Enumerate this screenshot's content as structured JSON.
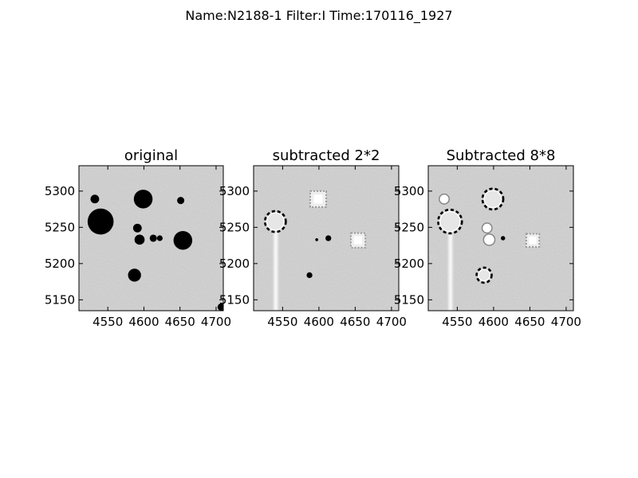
{
  "figure": {
    "suptitle": "Name:N2188-1 Filter:I Time:170116_1927"
  },
  "colors": {
    "background": "#d4d4d4",
    "star_dark": "#000000",
    "residual_light": "#ffffff",
    "axis": "#000000"
  },
  "chart_data": [
    {
      "type": "heatmap",
      "title": "original",
      "xlim": [
        4510,
        4710
      ],
      "ylim": [
        5135,
        5335
      ],
      "xticks": [
        4550,
        4600,
        4650,
        4700
      ],
      "yticks": [
        5150,
        5200,
        5250,
        5300
      ],
      "grid": false,
      "sources": [
        {
          "x": 4532,
          "y": 5289,
          "r": 6,
          "kind": "dark"
        },
        {
          "x": 4599,
          "y": 5289,
          "r": 13,
          "kind": "dark"
        },
        {
          "x": 4651,
          "y": 5287,
          "r": 5,
          "kind": "dark"
        },
        {
          "x": 4540,
          "y": 5258,
          "r": 18,
          "kind": "dark"
        },
        {
          "x": 4591,
          "y": 5249,
          "r": 6,
          "kind": "dark"
        },
        {
          "x": 4594,
          "y": 5233,
          "r": 7,
          "kind": "dark"
        },
        {
          "x": 4613,
          "y": 5235,
          "r": 5,
          "kind": "dark"
        },
        {
          "x": 4622,
          "y": 5235,
          "r": 4,
          "kind": "dark"
        },
        {
          "x": 4654,
          "y": 5232,
          "r": 13,
          "kind": "dark"
        },
        {
          "x": 4587,
          "y": 5184,
          "r": 9,
          "kind": "dark"
        },
        {
          "x": 4707,
          "y": 5140,
          "r": 5,
          "kind": "dark"
        }
      ]
    },
    {
      "type": "heatmap",
      "title": "subtracted 2*2",
      "xlim": [
        4510,
        4710
      ],
      "ylim": [
        5135,
        5335
      ],
      "xticks": [
        4550,
        4600,
        4650,
        4700
      ],
      "yticks": [
        5150,
        5200,
        5250,
        5300
      ],
      "grid": false,
      "sources": [
        {
          "x": 4540,
          "y": 5258,
          "r": 12,
          "kind": "ring"
        },
        {
          "x": 4599,
          "y": 5289,
          "r": 11,
          "kind": "square"
        },
        {
          "x": 4654,
          "y": 5232,
          "r": 10,
          "kind": "square"
        },
        {
          "x": 4613,
          "y": 5235,
          "r": 4,
          "kind": "dark"
        },
        {
          "x": 4597,
          "y": 5233,
          "r": 2,
          "kind": "dark"
        },
        {
          "x": 4587,
          "y": 5184,
          "r": 4,
          "kind": "dark"
        }
      ],
      "streak": {
        "x": 4540,
        "y_top": 5245,
        "y_bottom": 5135
      }
    },
    {
      "type": "heatmap",
      "title": "Subtracted 8*8",
      "xlim": [
        4510,
        4710
      ],
      "ylim": [
        5135,
        5335
      ],
      "xticks": [
        4550,
        4600,
        4650,
        4700
      ],
      "yticks": [
        5150,
        5200,
        5250,
        5300
      ],
      "grid": false,
      "sources": [
        {
          "x": 4532,
          "y": 5289,
          "r": 6,
          "kind": "light"
        },
        {
          "x": 4540,
          "y": 5258,
          "r": 14,
          "kind": "ring"
        },
        {
          "x": 4599,
          "y": 5289,
          "r": 12,
          "kind": "ring"
        },
        {
          "x": 4591,
          "y": 5249,
          "r": 6,
          "kind": "light"
        },
        {
          "x": 4594,
          "y": 5233,
          "r": 7,
          "kind": "light"
        },
        {
          "x": 4613,
          "y": 5235,
          "r": 3,
          "kind": "dark"
        },
        {
          "x": 4654,
          "y": 5232,
          "r": 9,
          "kind": "square"
        },
        {
          "x": 4587,
          "y": 5184,
          "r": 8,
          "kind": "ring"
        }
      ],
      "streak": {
        "x": 4540,
        "y_top": 5245,
        "y_bottom": 5135
      }
    }
  ]
}
